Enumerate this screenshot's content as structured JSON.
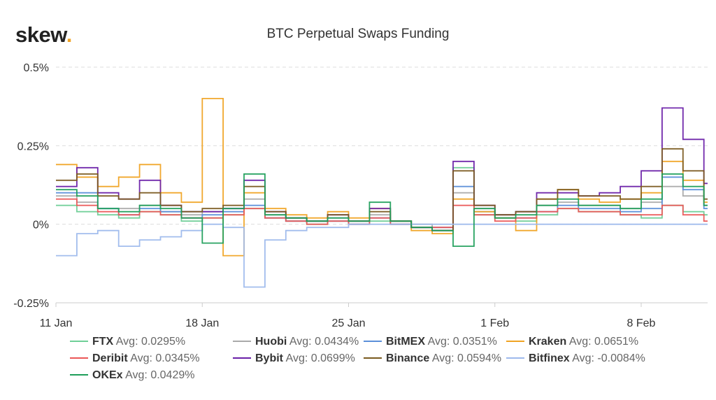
{
  "brand": {
    "name": "skew",
    "dot": "."
  },
  "chart_data": {
    "type": "line",
    "title": "BTC Perpetual Swaps Funding",
    "xlabel": "",
    "ylabel": "",
    "ylim": [
      -0.25,
      0.5
    ],
    "xlim": [
      "2021-01-11",
      "2021-02-11"
    ],
    "y_ticks": [
      {
        "value": 0.5,
        "label": "0.5%"
      },
      {
        "value": 0.25,
        "label": "0.25%"
      },
      {
        "value": 0,
        "label": "0%"
      },
      {
        "value": -0.25,
        "label": "-0.25%"
      }
    ],
    "x_ticks": [
      {
        "value": "2021-01-11",
        "label": "11 Jan"
      },
      {
        "value": "2021-01-18",
        "label": "18 Jan"
      },
      {
        "value": "2021-01-25",
        "label": "25 Jan"
      },
      {
        "value": "2021-02-01",
        "label": "1 Feb"
      },
      {
        "value": "2021-02-08",
        "label": "8 Feb"
      }
    ],
    "grid": "horizontal dashed",
    "legend_position": "bottom",
    "series": [
      {
        "name": "FTX",
        "avg": "Avg: 0.0295%",
        "color": "#6fcf97",
        "x": [
          "2021-01-11",
          "2021-01-12",
          "2021-01-13",
          "2021-01-14",
          "2021-01-15",
          "2021-01-16",
          "2021-01-17",
          "2021-01-18",
          "2021-01-19",
          "2021-01-20",
          "2021-01-21",
          "2021-01-22",
          "2021-01-23",
          "2021-01-24",
          "2021-01-25",
          "2021-01-26",
          "2021-01-27",
          "2021-01-28",
          "2021-01-29",
          "2021-01-30",
          "2021-01-31",
          "2021-02-01",
          "2021-02-02",
          "2021-02-03",
          "2021-02-04",
          "2021-02-05",
          "2021-02-06",
          "2021-02-07",
          "2021-02-08",
          "2021-02-09",
          "2021-02-10",
          "2021-02-11"
        ],
        "values": [
          0.06,
          0.04,
          0.03,
          0.02,
          0.04,
          0.03,
          0.01,
          0.02,
          0.03,
          0.05,
          0.02,
          0.01,
          0.0,
          0.01,
          0.0,
          0.01,
          0.0,
          -0.01,
          -0.02,
          0.18,
          0.03,
          0.02,
          0.01,
          0.03,
          0.05,
          0.04,
          0.04,
          0.03,
          0.02,
          0.06,
          0.04,
          0.03
        ]
      },
      {
        "name": "Huobi",
        "avg": "Avg: 0.0434%",
        "color": "#aaaaaa",
        "x": [
          "2021-01-11",
          "2021-01-12",
          "2021-01-13",
          "2021-01-14",
          "2021-01-15",
          "2021-01-16",
          "2021-01-17",
          "2021-01-18",
          "2021-01-19",
          "2021-01-20",
          "2021-01-21",
          "2021-01-22",
          "2021-01-23",
          "2021-01-24",
          "2021-01-25",
          "2021-01-26",
          "2021-01-27",
          "2021-01-28",
          "2021-01-29",
          "2021-01-30",
          "2021-01-31",
          "2021-02-01",
          "2021-02-02",
          "2021-02-03",
          "2021-02-04",
          "2021-02-05",
          "2021-02-06",
          "2021-02-07",
          "2021-02-08",
          "2021-02-09",
          "2021-02-10",
          "2021-02-11"
        ],
        "values": [
          0.09,
          0.07,
          0.05,
          0.05,
          0.06,
          0.04,
          0.03,
          0.04,
          0.05,
          0.08,
          0.03,
          0.02,
          0.01,
          0.02,
          0.01,
          0.03,
          0.01,
          0.0,
          -0.01,
          0.1,
          0.05,
          0.03,
          0.04,
          0.06,
          0.07,
          0.06,
          0.06,
          0.05,
          0.07,
          0.12,
          0.09,
          0.06
        ]
      },
      {
        "name": "BitMEX",
        "avg": "Avg: 0.0351%",
        "color": "#5b8fd9",
        "x": [
          "2021-01-11",
          "2021-01-12",
          "2021-01-13",
          "2021-01-14",
          "2021-01-15",
          "2021-01-16",
          "2021-01-17",
          "2021-01-18",
          "2021-01-19",
          "2021-01-20",
          "2021-01-21",
          "2021-01-22",
          "2021-01-23",
          "2021-01-24",
          "2021-01-25",
          "2021-01-26",
          "2021-01-27",
          "2021-01-28",
          "2021-01-29",
          "2021-01-30",
          "2021-01-31",
          "2021-02-01",
          "2021-02-02",
          "2021-02-03",
          "2021-02-04",
          "2021-02-05",
          "2021-02-06",
          "2021-02-07",
          "2021-02-08",
          "2021-02-09",
          "2021-02-10",
          "2021-02-11"
        ],
        "values": [
          0.1,
          0.1,
          0.05,
          0.03,
          0.05,
          0.04,
          0.02,
          0.03,
          0.04,
          0.06,
          0.02,
          0.01,
          0.01,
          0.01,
          0.0,
          0.02,
          0.0,
          -0.01,
          -0.01,
          0.12,
          0.04,
          0.02,
          0.02,
          0.04,
          0.06,
          0.05,
          0.05,
          0.04,
          0.05,
          0.15,
          0.11,
          0.05
        ]
      },
      {
        "name": "Kraken",
        "avg": "Avg: 0.0651%",
        "color": "#f0a323",
        "x": [
          "2021-01-11",
          "2021-01-12",
          "2021-01-13",
          "2021-01-14",
          "2021-01-15",
          "2021-01-16",
          "2021-01-17",
          "2021-01-18",
          "2021-01-19",
          "2021-01-20",
          "2021-01-21",
          "2021-01-22",
          "2021-01-23",
          "2021-01-24",
          "2021-01-25",
          "2021-01-26",
          "2021-01-27",
          "2021-01-28",
          "2021-01-29",
          "2021-01-30",
          "2021-01-31",
          "2021-02-01",
          "2021-02-02",
          "2021-02-03",
          "2021-02-04",
          "2021-02-05",
          "2021-02-06",
          "2021-02-07",
          "2021-02-08",
          "2021-02-09",
          "2021-02-10",
          "2021-02-11"
        ],
        "values": [
          0.19,
          0.15,
          0.12,
          0.15,
          0.19,
          0.1,
          0.07,
          0.4,
          -0.1,
          0.1,
          0.05,
          0.03,
          0.02,
          0.04,
          0.02,
          0.05,
          0.01,
          -0.02,
          -0.03,
          0.08,
          0.04,
          0.02,
          -0.02,
          0.08,
          0.11,
          0.08,
          0.07,
          0.08,
          0.1,
          0.2,
          0.14,
          0.07
        ]
      },
      {
        "name": "Deribit",
        "avg": "Avg: 0.0345%",
        "color": "#eb5757",
        "x": [
          "2021-01-11",
          "2021-01-12",
          "2021-01-13",
          "2021-01-14",
          "2021-01-15",
          "2021-01-16",
          "2021-01-17",
          "2021-01-18",
          "2021-01-19",
          "2021-01-20",
          "2021-01-21",
          "2021-01-22",
          "2021-01-23",
          "2021-01-24",
          "2021-01-25",
          "2021-01-26",
          "2021-01-27",
          "2021-01-28",
          "2021-01-29",
          "2021-01-30",
          "2021-01-31",
          "2021-02-01",
          "2021-02-02",
          "2021-02-03",
          "2021-02-04",
          "2021-02-05",
          "2021-02-06",
          "2021-02-07",
          "2021-02-08",
          "2021-02-09",
          "2021-02-10",
          "2021-02-11"
        ],
        "values": [
          0.08,
          0.06,
          0.04,
          0.03,
          0.04,
          0.03,
          0.02,
          0.02,
          0.03,
          0.05,
          0.02,
          0.01,
          0.0,
          0.01,
          0.0,
          0.02,
          0.0,
          -0.01,
          -0.01,
          0.06,
          0.03,
          0.01,
          0.02,
          0.04,
          0.05,
          0.04,
          0.04,
          0.03,
          0.03,
          0.06,
          0.03,
          0.01
        ]
      },
      {
        "name": "Bybit",
        "avg": "Avg: 0.0699%",
        "color": "#6a1fa8",
        "x": [
          "2021-01-11",
          "2021-01-12",
          "2021-01-13",
          "2021-01-14",
          "2021-01-15",
          "2021-01-16",
          "2021-01-17",
          "2021-01-18",
          "2021-01-19",
          "2021-01-20",
          "2021-01-21",
          "2021-01-22",
          "2021-01-23",
          "2021-01-24",
          "2021-01-25",
          "2021-01-26",
          "2021-01-27",
          "2021-01-28",
          "2021-01-29",
          "2021-01-30",
          "2021-01-31",
          "2021-02-01",
          "2021-02-02",
          "2021-02-03",
          "2021-02-04",
          "2021-02-05",
          "2021-02-06",
          "2021-02-07",
          "2021-02-08",
          "2021-02-09",
          "2021-02-10",
          "2021-02-11"
        ],
        "values": [
          0.12,
          0.18,
          0.1,
          0.08,
          0.14,
          0.06,
          0.04,
          0.04,
          0.05,
          0.14,
          0.04,
          0.02,
          0.01,
          0.03,
          0.01,
          0.05,
          0.01,
          -0.01,
          -0.02,
          0.2,
          0.06,
          0.03,
          0.04,
          0.1,
          0.1,
          0.09,
          0.1,
          0.12,
          0.17,
          0.37,
          0.27,
          0.13
        ]
      },
      {
        "name": "Binance",
        "avg": "Avg: 0.0594%",
        "color": "#7a5a1f",
        "x": [
          "2021-01-11",
          "2021-01-12",
          "2021-01-13",
          "2021-01-14",
          "2021-01-15",
          "2021-01-16",
          "2021-01-17",
          "2021-01-18",
          "2021-01-19",
          "2021-01-20",
          "2021-01-21",
          "2021-01-22",
          "2021-01-23",
          "2021-01-24",
          "2021-01-25",
          "2021-01-26",
          "2021-01-27",
          "2021-01-28",
          "2021-01-29",
          "2021-01-30",
          "2021-01-31",
          "2021-02-01",
          "2021-02-02",
          "2021-02-03",
          "2021-02-04",
          "2021-02-05",
          "2021-02-06",
          "2021-02-07",
          "2021-02-08",
          "2021-02-09",
          "2021-02-10",
          "2021-02-11"
        ],
        "values": [
          0.14,
          0.16,
          0.09,
          0.08,
          0.1,
          0.06,
          0.04,
          0.05,
          0.06,
          0.12,
          0.04,
          0.02,
          0.01,
          0.03,
          0.01,
          0.04,
          0.01,
          -0.01,
          -0.02,
          0.17,
          0.06,
          0.03,
          0.04,
          0.08,
          0.11,
          0.09,
          0.09,
          0.08,
          0.12,
          0.24,
          0.17,
          0.08
        ]
      },
      {
        "name": "Bitfinex",
        "avg": "Avg: -0.0084%",
        "color": "#9db9ec",
        "x": [
          "2021-01-11",
          "2021-01-12",
          "2021-01-13",
          "2021-01-14",
          "2021-01-15",
          "2021-01-16",
          "2021-01-17",
          "2021-01-18",
          "2021-01-19",
          "2021-01-20",
          "2021-01-21",
          "2021-01-22",
          "2021-01-23",
          "2021-01-24",
          "2021-01-25",
          "2021-01-26",
          "2021-01-27",
          "2021-01-28",
          "2021-01-29",
          "2021-01-30",
          "2021-01-31",
          "2021-02-01",
          "2021-02-02",
          "2021-02-03",
          "2021-02-04",
          "2021-02-05",
          "2021-02-06",
          "2021-02-07",
          "2021-02-08",
          "2021-02-09",
          "2021-02-10",
          "2021-02-11"
        ],
        "values": [
          -0.1,
          -0.03,
          -0.02,
          -0.07,
          -0.05,
          -0.04,
          -0.02,
          0.0,
          -0.01,
          -0.2,
          -0.05,
          -0.02,
          -0.01,
          -0.01,
          0.0,
          0.0,
          0.0,
          0.0,
          0.0,
          0.0,
          0.0,
          0.0,
          0.0,
          0.0,
          0.0,
          0.0,
          0.0,
          0.0,
          0.0,
          0.0,
          0.0,
          0.0
        ]
      },
      {
        "name": "OKEx",
        "avg": "Avg: 0.0429%",
        "color": "#1e9e5a",
        "x": [
          "2021-01-11",
          "2021-01-12",
          "2021-01-13",
          "2021-01-14",
          "2021-01-15",
          "2021-01-16",
          "2021-01-17",
          "2021-01-18",
          "2021-01-19",
          "2021-01-20",
          "2021-01-21",
          "2021-01-22",
          "2021-01-23",
          "2021-01-24",
          "2021-01-25",
          "2021-01-26",
          "2021-01-27",
          "2021-01-28",
          "2021-01-29",
          "2021-01-30",
          "2021-01-31",
          "2021-02-01",
          "2021-02-02",
          "2021-02-03",
          "2021-02-04",
          "2021-02-05",
          "2021-02-06",
          "2021-02-07",
          "2021-02-08",
          "2021-02-09",
          "2021-02-10",
          "2021-02-11"
        ],
        "values": [
          0.11,
          0.09,
          0.05,
          0.04,
          0.06,
          0.05,
          0.02,
          -0.06,
          0.05,
          0.16,
          0.03,
          0.02,
          0.01,
          0.02,
          0.01,
          0.07,
          0.01,
          -0.01,
          -0.02,
          -0.07,
          0.05,
          0.02,
          0.03,
          0.06,
          0.08,
          0.06,
          0.06,
          0.05,
          0.08,
          0.16,
          0.12,
          0.06
        ]
      }
    ]
  }
}
